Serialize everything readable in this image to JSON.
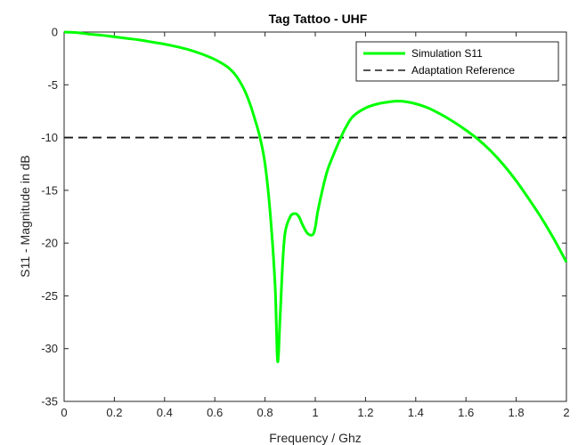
{
  "chart_data": {
    "type": "line",
    "title": "Tag Tattoo - UHF",
    "xlabel": "Frequency / Ghz",
    "ylabel": "S11 - Magnitude in dB",
    "xlim": [
      0,
      2
    ],
    "ylim": [
      -35,
      0
    ],
    "xticks": [
      0,
      0.2,
      0.4,
      0.6,
      0.8,
      1,
      1.2,
      1.4,
      1.6,
      1.8,
      2
    ],
    "xtick_labels": [
      "0",
      "0.2",
      "0.4",
      "0.6",
      "0.8",
      "1",
      "1.2",
      "1.4",
      "1.6",
      "1.8",
      "2"
    ],
    "yticks": [
      0,
      -5,
      -10,
      -15,
      -20,
      -25,
      -30,
      -35
    ],
    "ytick_labels": [
      "0",
      "-5",
      "-10",
      "-15",
      "-20",
      "-25",
      "-30",
      "-35"
    ],
    "grid": false,
    "legend_position": "top-right",
    "series": [
      {
        "name": "Simulation S11",
        "color": "#00ff00",
        "style": "solid",
        "x": [
          0,
          0.05,
          0.1,
          0.15,
          0.2,
          0.25,
          0.3,
          0.35,
          0.4,
          0.45,
          0.5,
          0.55,
          0.6,
          0.65,
          0.68,
          0.7,
          0.72,
          0.74,
          0.76,
          0.78,
          0.8,
          0.82,
          0.84,
          0.85,
          0.86,
          0.87,
          0.88,
          0.9,
          0.92,
          0.935,
          0.95,
          0.97,
          0.99,
          1.0,
          1.01,
          1.03,
          1.05,
          1.08,
          1.1,
          1.12,
          1.15,
          1.2,
          1.25,
          1.3,
          1.33,
          1.36,
          1.4,
          1.45,
          1.5,
          1.55,
          1.6,
          1.65,
          1.7,
          1.75,
          1.8,
          1.85,
          1.9,
          1.95,
          2.0
        ],
        "y": [
          0,
          -0.05,
          -0.2,
          -0.3,
          -0.45,
          -0.6,
          -0.75,
          -0.95,
          -1.15,
          -1.4,
          -1.7,
          -2.1,
          -2.6,
          -3.3,
          -4.0,
          -4.7,
          -5.6,
          -6.8,
          -8.3,
          -10.0,
          -12.5,
          -17.0,
          -24.0,
          -31.2,
          -27.0,
          -22.0,
          -19.0,
          -17.5,
          -17.2,
          -17.5,
          -18.3,
          -19.1,
          -19.2,
          -18.5,
          -17.0,
          -14.8,
          -13.0,
          -11.2,
          -10.1,
          -9.1,
          -8.0,
          -7.2,
          -6.8,
          -6.6,
          -6.55,
          -6.6,
          -6.8,
          -7.2,
          -7.8,
          -8.5,
          -9.3,
          -10.2,
          -11.3,
          -12.6,
          -14.1,
          -15.8,
          -17.6,
          -19.6,
          -21.8
        ]
      },
      {
        "name": "Adaptation Reference",
        "color": "#1a1a1a",
        "style": "dashed",
        "x": [
          0,
          2
        ],
        "y": [
          -10,
          -10
        ]
      }
    ]
  }
}
